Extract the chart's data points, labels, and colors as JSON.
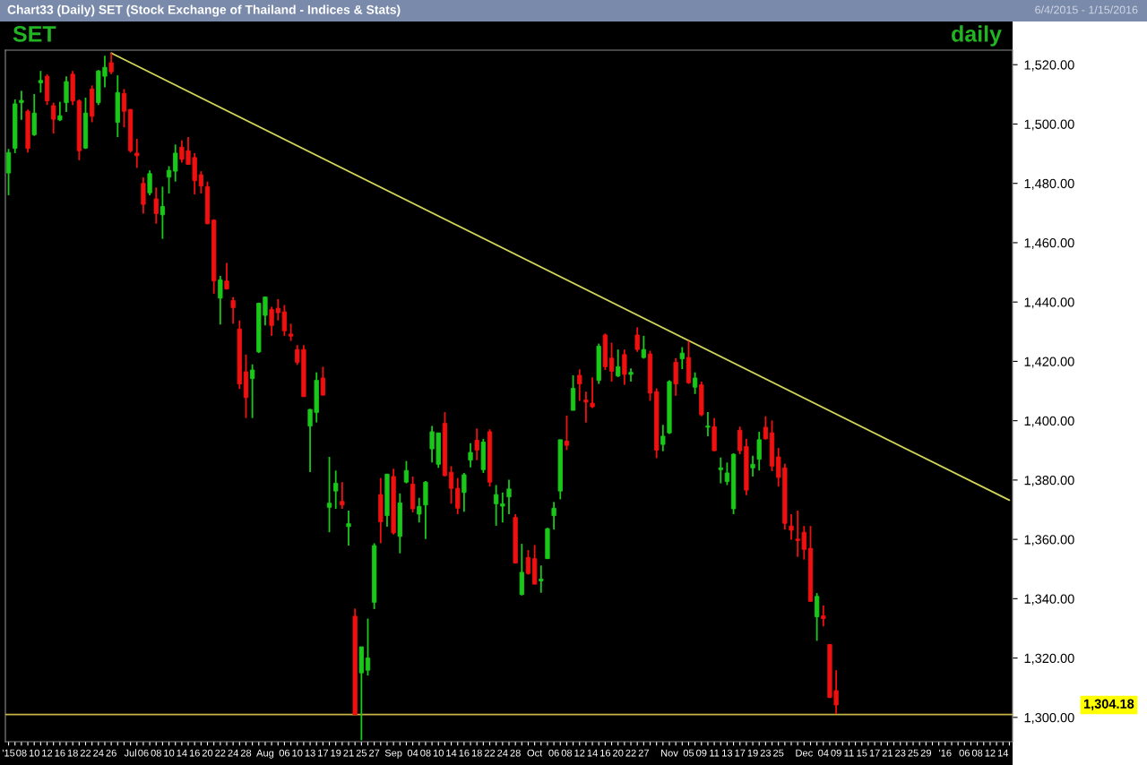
{
  "chart_data": {
    "type": "candlestick",
    "title": "Chart33 (Daily) SET (Stock Exchange of Thailand - Indices & Stats)",
    "subtitle": "6/4/2015 - 1/15/2016",
    "annotations": [
      "SET",
      "daily",
      "1,304.18"
    ],
    "categories": [
      "'15",
      null,
      "08",
      null,
      "10",
      null,
      "12",
      null,
      "16",
      null,
      "18",
      null,
      "22",
      null,
      "24",
      null,
      "26",
      null,
      null,
      "Jul",
      null,
      "06",
      null,
      "08",
      null,
      "10",
      null,
      "14",
      null,
      "16",
      null,
      "20",
      null,
      "22",
      null,
      "24",
      null,
      "28",
      null,
      null,
      "Aug",
      null,
      null,
      "06",
      null,
      "10",
      null,
      "13",
      null,
      "17",
      null,
      "19",
      null,
      "21",
      null,
      "25",
      null,
      "27",
      null,
      null,
      "Sep",
      null,
      null,
      "04",
      null,
      "08",
      null,
      "10",
      null,
      "14",
      null,
      "16",
      null,
      "18",
      null,
      "22",
      null,
      "24",
      null,
      "28",
      null,
      null,
      "Oct",
      null,
      null,
      "06",
      null,
      "08",
      null,
      "12",
      null,
      "14",
      null,
      "16",
      null,
      "20",
      null,
      "22",
      null,
      "27",
      null,
      null,
      null,
      "Nov",
      null,
      null,
      "05",
      null,
      "09",
      null,
      "11",
      null,
      "13",
      null,
      "17",
      null,
      "19",
      null,
      "23",
      null,
      "25",
      null,
      null,
      null,
      "Dec",
      null,
      null,
      "04",
      null,
      "09",
      null,
      "11",
      null,
      "15",
      null,
      "17",
      null,
      "21",
      null,
      "23",
      null,
      "25",
      null,
      "29",
      null,
      null,
      "'16",
      null,
      null,
      "06",
      null,
      "08",
      null,
      "12",
      null,
      "14",
      null
    ],
    "ohlc": [
      [
        1483.5,
        1491.6,
        1476.0,
        1490.4
      ],
      [
        1491.8,
        1508.3,
        1490.2,
        1506.8
      ],
      [
        1507.2,
        1511.2,
        1501.4,
        1508.0
      ],
      [
        1504.3,
        1504.9,
        1490.4,
        1491.8
      ],
      [
        1496.4,
        1510.1,
        1496.0,
        1503.7
      ],
      [
        1513.9,
        1517.9,
        1510.6,
        1514.7
      ],
      [
        1516.1,
        1516.8,
        1506.4,
        1507.8
      ],
      [
        1506.2,
        1507.2,
        1496.8,
        1501.6
      ],
      [
        1501.4,
        1507.5,
        1501.0,
        1502.8
      ],
      [
        1507.2,
        1516.1,
        1504.1,
        1514.3
      ],
      [
        1516.8,
        1517.9,
        1506.4,
        1507.8
      ],
      [
        1507.8,
        1508.3,
        1487.8,
        1491.0
      ],
      [
        1491.9,
        1508.9,
        1491.6,
        1503.7
      ],
      [
        1511.8,
        1513.0,
        1500.6,
        1502.6
      ],
      [
        1507.2,
        1518.2,
        1506.4,
        1517.9
      ],
      [
        1516.1,
        1523.0,
        1512.4,
        1519.1
      ],
      [
        1520.7,
        1523.9,
        1516.8,
        1517.6
      ],
      [
        1500.6,
        1516.4,
        1495.6,
        1510.6
      ],
      [
        1510.3,
        1511.8,
        1498.9,
        1504.3
      ],
      [
        1504.9,
        1505.1,
        1490.4,
        1491.0
      ],
      [
        1490.2,
        1495.0,
        1485.2,
        1489.3
      ],
      [
        1480.0,
        1482.0,
        1469.8,
        1472.9
      ],
      [
        1476.8,
        1484.4,
        1476.0,
        1483.3
      ],
      [
        1474.8,
        1478.6,
        1466.4,
        1469.8
      ],
      [
        1469.4,
        1478.9,
        1461.3,
        1472.2
      ],
      [
        1482.1,
        1485.8,
        1476.6,
        1484.4
      ],
      [
        1484.1,
        1493.1,
        1480.6,
        1490.2
      ],
      [
        1492.2,
        1494.5,
        1487.0,
        1488.1
      ],
      [
        1491.0,
        1495.6,
        1486.4,
        1486.4
      ],
      [
        1488.7,
        1490.2,
        1476.3,
        1480.9
      ],
      [
        1482.9,
        1484.1,
        1476.6,
        1479.1
      ],
      [
        1478.9,
        1480.6,
        1466.2,
        1466.4
      ],
      [
        1467.6,
        1467.9,
        1442.8,
        1447.1
      ],
      [
        1441.3,
        1448.8,
        1432.4,
        1447.5
      ],
      [
        1447.1,
        1453.2,
        1444.2,
        1444.4
      ],
      [
        1440.5,
        1441.7,
        1432.7,
        1438.1
      ],
      [
        1430.9,
        1433.8,
        1410.7,
        1412.4
      ],
      [
        1416.5,
        1422.3,
        1400.9,
        1407.8
      ],
      [
        1414.2,
        1419.0,
        1400.9,
        1417.1
      ],
      [
        1423.2,
        1439.8,
        1422.8,
        1439.6
      ],
      [
        1435.5,
        1441.9,
        1432.1,
        1441.7
      ],
      [
        1437.5,
        1438.4,
        1428.6,
        1432.1
      ],
      [
        1437.9,
        1441.0,
        1433.8,
        1436.4
      ],
      [
        1436.7,
        1439.0,
        1428.6,
        1430.3
      ],
      [
        1429.2,
        1432.7,
        1426.9,
        1428.5
      ],
      [
        1424.0,
        1425.5,
        1418.8,
        1419.7
      ],
      [
        1424.0,
        1425.5,
        1408.1,
        1408.1
      ],
      [
        1398.2,
        1404.0,
        1382.7,
        1403.8
      ],
      [
        1402.8,
        1416.3,
        1399.4,
        1413.6
      ],
      [
        1414.4,
        1418.2,
        1408.6,
        1408.6
      ],
      [
        1370.8,
        1387.8,
        1362.4,
        1372.2
      ],
      [
        1376.3,
        1383.2,
        1370.3,
        1378.9
      ],
      [
        1372.8,
        1379.3,
        1370.3,
        1371.6
      ],
      [
        1364.3,
        1369.7,
        1357.9,
        1365.3
      ],
      [
        1334.1,
        1336.7,
        1300.9,
        1300.9
      ],
      [
        1315.0,
        1323.8,
        1292.3,
        1323.8
      ],
      [
        1315.9,
        1333.3,
        1314.1,
        1320.0
      ],
      [
        1338.8,
        1358.7,
        1336.5,
        1357.9
      ],
      [
        1375.1,
        1380.7,
        1358.7,
        1365.9
      ],
      [
        1368.0,
        1382.0,
        1364.3,
        1382.0
      ],
      [
        1381.2,
        1383.8,
        1361.6,
        1362.2
      ],
      [
        1361.0,
        1375.5,
        1355.3,
        1372.3
      ],
      [
        1379.3,
        1386.4,
        1378.9,
        1383.2
      ],
      [
        1378.6,
        1381.2,
        1369.1,
        1370.3
      ],
      [
        1368.5,
        1374.0,
        1365.7,
        1371.1
      ],
      [
        1371.6,
        1379.7,
        1360.1,
        1379.3
      ],
      [
        1390.5,
        1398.2,
        1385.9,
        1396.3
      ],
      [
        1385.3,
        1395.9,
        1384.1,
        1395.9
      ],
      [
        1399.1,
        1402.9,
        1381.2,
        1381.5
      ],
      [
        1382.6,
        1384.7,
        1372.0,
        1377.2
      ],
      [
        1377.2,
        1380.7,
        1368.5,
        1370.5
      ],
      [
        1375.8,
        1382.4,
        1369.3,
        1381.8
      ],
      [
        1386.7,
        1392.4,
        1384.3,
        1389.3
      ],
      [
        1393.4,
        1397.4,
        1386.7,
        1390.1
      ],
      [
        1383.5,
        1393.9,
        1382.4,
        1392.8
      ],
      [
        1396.3,
        1397.1,
        1377.8,
        1379.3
      ],
      [
        1372.0,
        1378.3,
        1364.6,
        1375.1
      ],
      [
        1371.2,
        1375.8,
        1365.7,
        1372.0
      ],
      [
        1374.3,
        1380.1,
        1368.5,
        1377.0
      ],
      [
        1367.4,
        1368.5,
        1352.0,
        1352.0
      ],
      [
        1341.4,
        1358.5,
        1341.1,
        1348.9
      ],
      [
        1353.9,
        1356.4,
        1348.1,
        1348.5
      ],
      [
        1353.5,
        1358.1,
        1344.9,
        1344.9
      ],
      [
        1346.0,
        1351.2,
        1342.0,
        1346.6
      ],
      [
        1353.5,
        1363.9,
        1353.5,
        1363.6
      ],
      [
        1368.0,
        1372.6,
        1363.3,
        1370.5
      ],
      [
        1376.3,
        1393.6,
        1373.5,
        1393.6
      ],
      [
        1393.1,
        1401.7,
        1390.1,
        1391.7
      ],
      [
        1403.5,
        1415.3,
        1403.5,
        1410.9
      ],
      [
        1415.3,
        1417.3,
        1406.7,
        1412.4
      ],
      [
        1407.0,
        1409.8,
        1399.4,
        1406.3
      ],
      [
        1405.9,
        1414.6,
        1404.3,
        1404.7
      ],
      [
        1413.6,
        1426.0,
        1412.4,
        1425.1
      ],
      [
        1428.9,
        1429.4,
        1417.1,
        1418.2
      ],
      [
        1421.1,
        1426.3,
        1413.2,
        1416.7
      ],
      [
        1415.1,
        1424.0,
        1414.7,
        1418.2
      ],
      [
        1422.3,
        1424.0,
        1412.1,
        1415.6
      ],
      [
        1415.6,
        1417.6,
        1413.2,
        1416.3
      ],
      [
        1428.9,
        1431.5,
        1423.2,
        1424.0
      ],
      [
        1421.3,
        1428.6,
        1420.9,
        1424.0
      ],
      [
        1422.5,
        1423.6,
        1406.7,
        1409.3
      ],
      [
        1409.8,
        1410.9,
        1387.4,
        1390.1
      ],
      [
        1392.0,
        1398.6,
        1389.7,
        1394.8
      ],
      [
        1395.9,
        1413.6,
        1395.5,
        1413.2
      ],
      [
        1419.7,
        1421.1,
        1408.4,
        1412.4
      ],
      [
        1420.9,
        1424.8,
        1417.4,
        1422.8
      ],
      [
        1421.3,
        1426.9,
        1412.4,
        1412.8
      ],
      [
        1411.3,
        1416.3,
        1409.0,
        1414.4
      ],
      [
        1412.1,
        1413.2,
        1401.5,
        1402.0
      ],
      [
        1397.8,
        1402.9,
        1394.8,
        1398.2
      ],
      [
        1398.0,
        1400.9,
        1389.7,
        1389.9
      ],
      [
        1383.5,
        1387.6,
        1378.9,
        1384.1
      ],
      [
        1379.5,
        1385.9,
        1378.3,
        1382.4
      ],
      [
        1370.3,
        1389.0,
        1368.5,
        1388.7
      ],
      [
        1396.8,
        1398.0,
        1388.7,
        1389.9
      ],
      [
        1391.3,
        1393.9,
        1374.9,
        1376.6
      ],
      [
        1384.1,
        1388.2,
        1381.2,
        1385.3
      ],
      [
        1387.0,
        1396.3,
        1383.2,
        1393.6
      ],
      [
        1397.8,
        1401.5,
        1393.6,
        1393.9
      ],
      [
        1395.9,
        1400.1,
        1383.0,
        1384.7
      ],
      [
        1387.8,
        1390.8,
        1377.8,
        1380.9
      ],
      [
        1384.1,
        1385.5,
        1363.3,
        1365.4
      ],
      [
        1364.5,
        1368.5,
        1359.9,
        1363.1
      ],
      [
        1360.1,
        1369.7,
        1354.1,
        1359.6
      ],
      [
        1362.4,
        1364.5,
        1353.2,
        1356.6
      ],
      [
        1357.0,
        1364.5,
        1339.1,
        1339.1
      ],
      [
        1333.9,
        1341.9,
        1325.8,
        1340.8
      ],
      [
        1334.2,
        1337.7,
        1330.7,
        1333.3
      ],
      [
        1324.6,
        1324.6,
        1306.5,
        1306.7
      ],
      [
        1309.0,
        1315.9,
        1301.2,
        1304.18
      ],
      null,
      null,
      null,
      null,
      null,
      null,
      null,
      null,
      null,
      null,
      null,
      null,
      null,
      null,
      null,
      null,
      null,
      null,
      null,
      null,
      null,
      null,
      null,
      null,
      null,
      null,
      null
    ],
    "colors": [
      "#19c819",
      "#19c819",
      "#19c819",
      "#f01010",
      "#19c819",
      "#19c819",
      "#f01010",
      "#f01010",
      "#19c819",
      "#19c819",
      "#f01010",
      "#f01010",
      "#19c819",
      "#f01010",
      "#19c819",
      "#19c819",
      "#f01010",
      "#19c819",
      "#f01010",
      "#f01010",
      "#f01010",
      "#f01010",
      "#19c819",
      "#f01010",
      "#19c819",
      "#19c819",
      "#19c819",
      "#f01010",
      "#f01010",
      "#f01010",
      "#f01010",
      "#f01010",
      "#f01010",
      "#19c819",
      "#f01010",
      "#f01010",
      "#f01010",
      "#f01010",
      "#19c819",
      "#19c819",
      "#19c819",
      "#f01010",
      "#f01010",
      "#f01010",
      "#f01010",
      "#f01010",
      "#f01010",
      "#19c819",
      "#19c819",
      "#f01010",
      "#19c819",
      "#19c819",
      "#f01010",
      "#19c819",
      "#f01010",
      "#19c819",
      "#19c819",
      "#19c819",
      "#f01010",
      "#19c819",
      "#f01010",
      "#19c819",
      "#19c819",
      "#f01010",
      "#19c819",
      "#19c819",
      "#19c819",
      "#19c819",
      "#f01010",
      "#f01010",
      "#f01010",
      "#19c819",
      "#19c819",
      "#f01010",
      "#19c819",
      "#f01010",
      "#19c819",
      "#19c819",
      "#19c819",
      "#f01010",
      "#19c819",
      "#f01010",
      "#f01010",
      "#19c819",
      "#19c819",
      "#19c819",
      "#19c819",
      "#f01010",
      "#19c819",
      "#f01010",
      "#f01010",
      "#f01010",
      "#19c819",
      "#f01010",
      "#f01010",
      "#19c819",
      "#f01010",
      "#19c819",
      "#f01010",
      "#19c819",
      "#f01010",
      "#f01010",
      "#19c819",
      "#19c819",
      "#f01010",
      "#19c819",
      "#f01010",
      "#19c819",
      "#f01010",
      "#19c819",
      "#f01010",
      "#19c819",
      "#19c819",
      "#19c819",
      "#f01010",
      "#f01010",
      "#19c819",
      "#19c819",
      "#f01010",
      "#f01010",
      "#f01010",
      "#f01010",
      "#f01010",
      "#f01010",
      "#f01010",
      "#f01010",
      "#19c819",
      "#f01010",
      "#f01010",
      "#f01010",
      null,
      null,
      null,
      null,
      null,
      null,
      null,
      null,
      null,
      null,
      null,
      null,
      null,
      null,
      null,
      null,
      null,
      null,
      null,
      null,
      null,
      null,
      null,
      null,
      null,
      null,
      null
    ],
    "series": [
      {
        "type": "line",
        "color": "#d4d45a",
        "values": [
          null,
          null,
          null,
          null,
          null,
          null,
          null,
          null,
          null,
          null,
          null,
          null,
          null,
          null,
          null,
          null,
          1523.9,
          null,
          null,
          null,
          null,
          null,
          null,
          null,
          null,
          null,
          null,
          null,
          null,
          null,
          null,
          null,
          null,
          null,
          null,
          null,
          null,
          null,
          null,
          null,
          null,
          null,
          null,
          null,
          null,
          null,
          null,
          null,
          null,
          null,
          null,
          null,
          null,
          null,
          null,
          null,
          null,
          null,
          null,
          null,
          null,
          null,
          null,
          null,
          null,
          null,
          null,
          null,
          null,
          null,
          null,
          null,
          null,
          null,
          null,
          null,
          null,
          null,
          null,
          null,
          null,
          null,
          null,
          null,
          null,
          null,
          null,
          null,
          null,
          null,
          null,
          null,
          null,
          null,
          null,
          null,
          null,
          null,
          null,
          null,
          null,
          null,
          null,
          null,
          null,
          null,
          null,
          null,
          null,
          null,
          null,
          null,
          null,
          null,
          null,
          null,
          null,
          null,
          null,
          null,
          null,
          null,
          null,
          null,
          null,
          null,
          null,
          null,
          null,
          null,
          null,
          null,
          null,
          null,
          null,
          null,
          null,
          null,
          null,
          null,
          null,
          null,
          null,
          null,
          null,
          null,
          null,
          null,
          null,
          null,
          null,
          null,
          null,
          null,
          null,
          null,
          1373.2
        ]
      }
    ],
    "ref_lines": [
      {
        "axis": "y",
        "value": 1301,
        "color": "#c8b446"
      }
    ],
    "ylim": [
      1291.8,
      1524.9
    ],
    "yticks": [
      {
        "value": 1300,
        "label": "1,300.00"
      },
      {
        "value": 1320,
        "label": "1,320.00"
      },
      {
        "value": 1340,
        "label": "1,340.00"
      },
      {
        "value": 1360,
        "label": "1,360.00"
      },
      {
        "value": 1380,
        "label": "1,380.00"
      },
      {
        "value": 1400,
        "label": "1,400.00"
      },
      {
        "value": 1420,
        "label": "1,420.00"
      },
      {
        "value": 1440,
        "label": "1,440.00"
      },
      {
        "value": 1460,
        "label": "1,460.00"
      },
      {
        "value": 1480,
        "label": "1,480.00"
      },
      {
        "value": 1500,
        "label": "1,500.00"
      },
      {
        "value": 1520,
        "label": "1,520.00"
      }
    ]
  }
}
